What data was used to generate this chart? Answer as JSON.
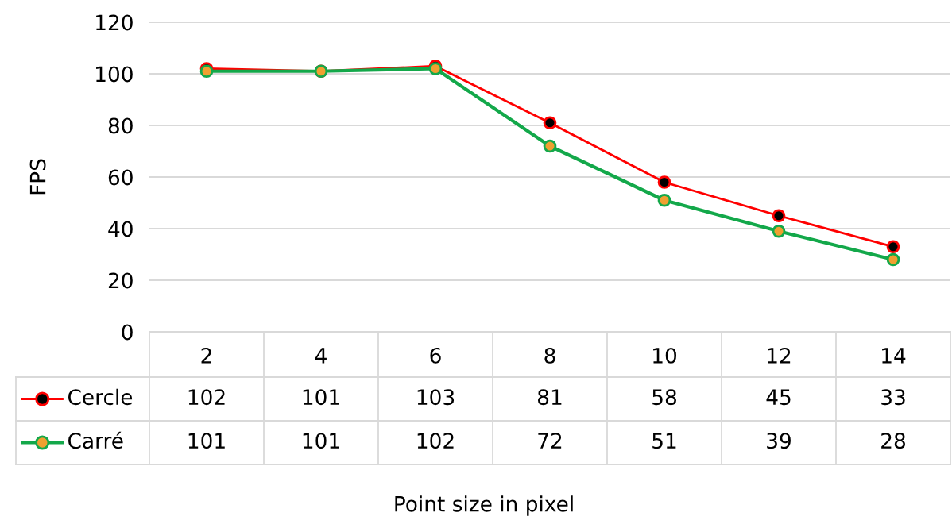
{
  "chart_data": {
    "type": "line",
    "annotations": [
      "Point size in pixel"
    ],
    "ylabel": "FPS",
    "categories": [
      "2",
      "4",
      "6",
      "8",
      "10",
      "12",
      "14"
    ],
    "series": [
      {
        "name": "Cercle",
        "color": "#ff0000",
        "values": [
          102,
          101,
          103,
          81,
          58,
          45,
          33
        ]
      },
      {
        "name": "Carré",
        "color": "#13a84a",
        "values": [
          101,
          101,
          102,
          72,
          51,
          39,
          28
        ]
      }
    ],
    "ylim": [
      0,
      120
    ],
    "yticks": [
      0,
      20,
      40,
      60,
      80,
      100,
      120
    ],
    "grid": "y",
    "legend": "bottom",
    "marker": "circle",
    "line_style": "solid",
    "data_labels": true
  }
}
